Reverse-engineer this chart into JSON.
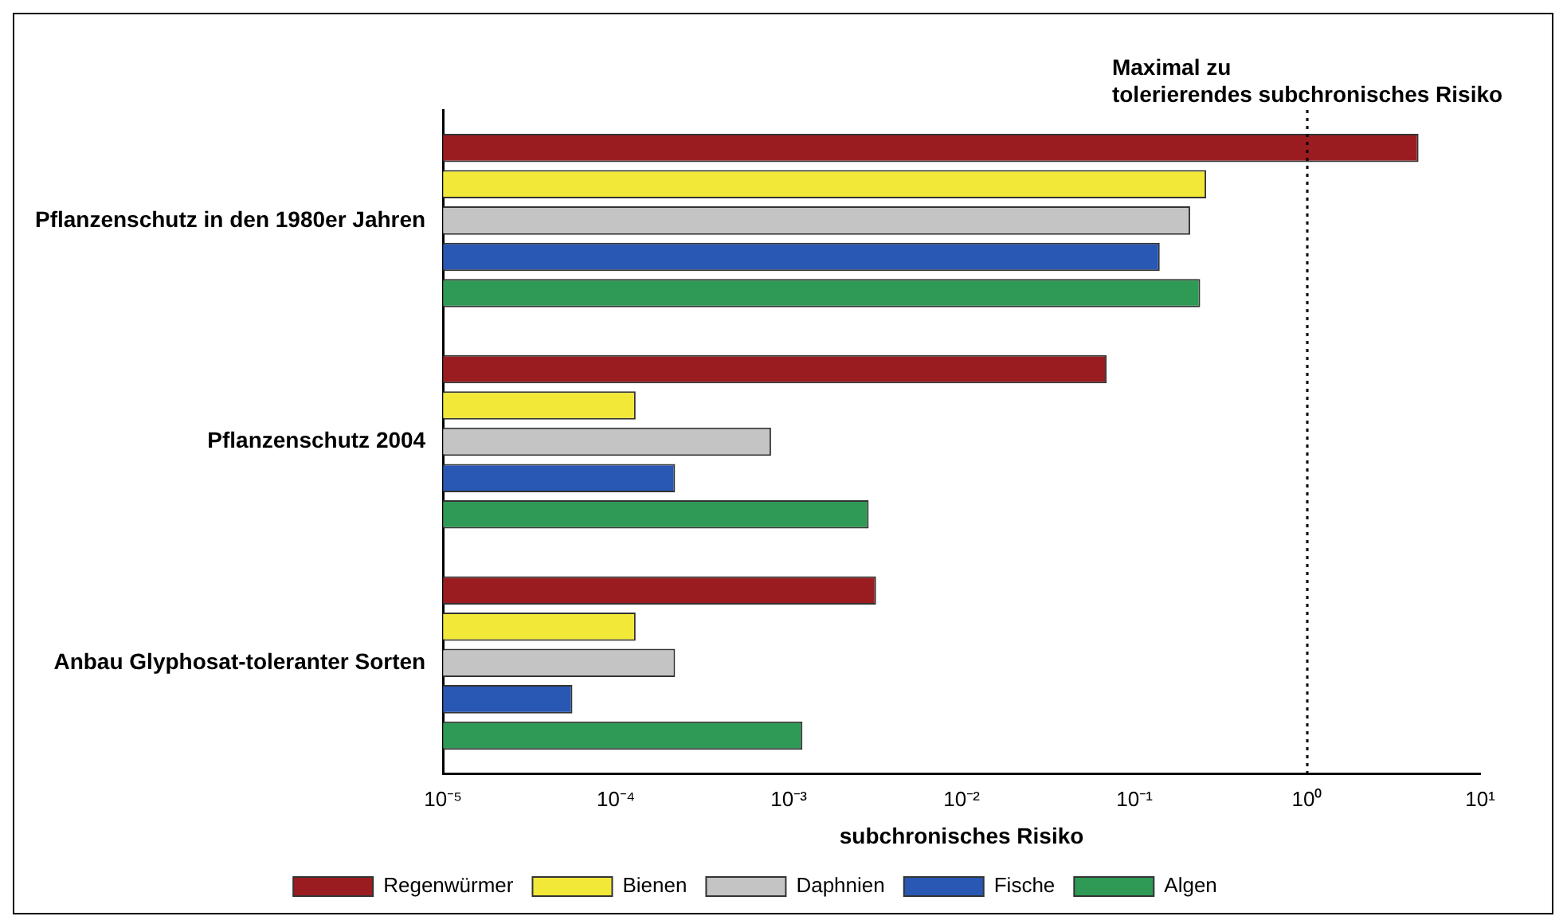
{
  "chart_data": {
    "type": "bar",
    "orientation": "horizontal",
    "xlabel": "subchronisches Risiko",
    "log": "x",
    "categories": [
      "Pflanzenschutz in den 1980er Jahren",
      "Pflanzenschutz 2004",
      "Anbau Glyphosat-toleranter Sorten"
    ],
    "series": [
      {
        "name": "Regenwürmer",
        "color": "#9b1c20",
        "values": [
          4.4,
          0.069,
          0.0032
        ]
      },
      {
        "name": "Bienen",
        "color": "#f2e838",
        "values": [
          0.26,
          0.00013,
          0.00013
        ]
      },
      {
        "name": "Daphnien",
        "color": "#c4c4c4",
        "values": [
          0.21,
          0.00079,
          0.00022
        ]
      },
      {
        "name": "Fische",
        "color": "#2857b4",
        "values": [
          0.14,
          0.00022,
          5.6e-05
        ]
      },
      {
        "name": "Algen",
        "color": "#2e9a55",
        "values": [
          0.24,
          0.0029,
          0.0012
        ]
      }
    ],
    "xlim": [
      1e-05,
      10
    ],
    "xticks": [
      {
        "value": 1e-05,
        "label": "10⁻⁵"
      },
      {
        "value": 0.0001,
        "label": "10⁻⁴"
      },
      {
        "value": 0.001,
        "label": "10⁻³"
      },
      {
        "value": 0.01,
        "label": "10⁻²"
      },
      {
        "value": 0.1,
        "label": "10⁻¹"
      },
      {
        "value": 1,
        "label": "10⁰"
      },
      {
        "value": 10,
        "label": "10¹"
      }
    ],
    "ref_lines": [
      {
        "axis": "x",
        "value": 1,
        "label": "Maximal zu\ntolerierendes subchronisches Risiko",
        "line_style": "dotted",
        "color": "#000000"
      }
    ],
    "grid": false,
    "legend": "bottom"
  }
}
